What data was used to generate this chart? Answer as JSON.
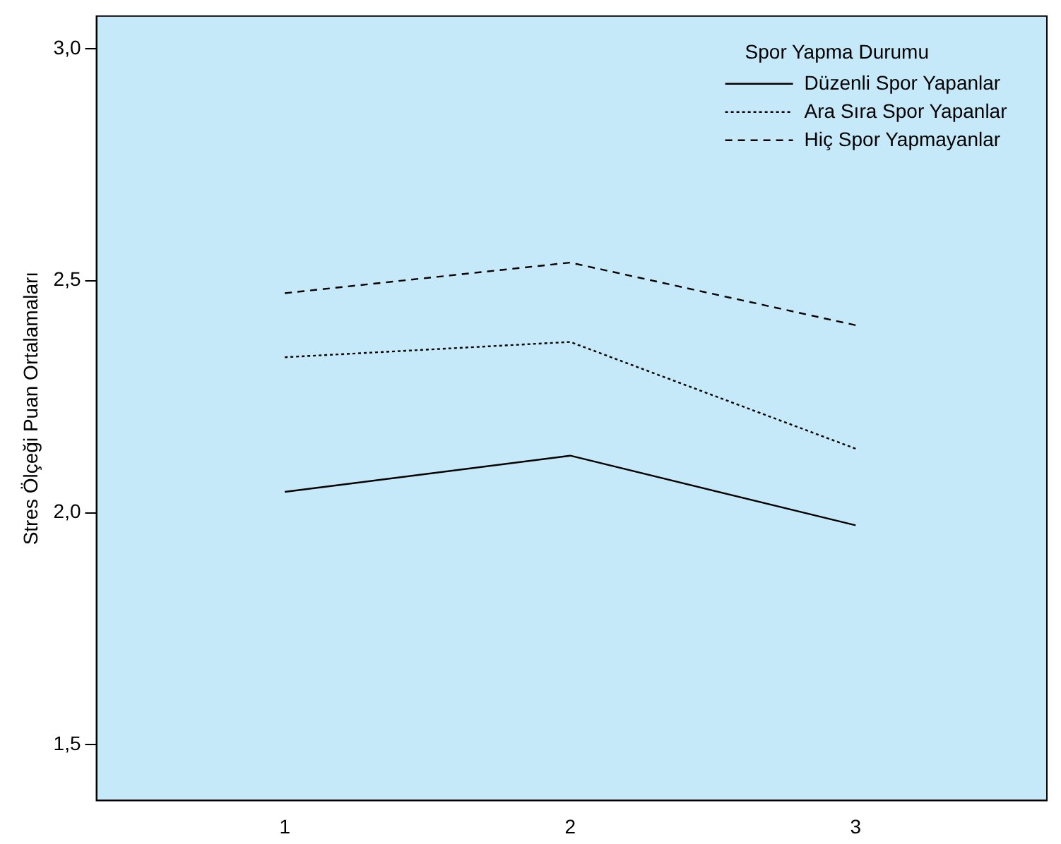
{
  "chart_data": {
    "type": "line",
    "ylabel": "Stres Ölçeği Puan Ortalamaları",
    "legend_title": "Spor Yapma Durumu",
    "legend": "top right",
    "marker": "none",
    "grid": false,
    "x": [
      1,
      2,
      3
    ],
    "xlim": [
      0.34,
      3.67
    ],
    "xticks": [
      1,
      2,
      3
    ],
    "ylim": [
      1.38,
      3.07
    ],
    "yticks": [
      {
        "value": 1.5,
        "label": "1,5"
      },
      {
        "value": 2,
        "label": "2,0"
      },
      {
        "value": 2.5,
        "label": "2,5"
      },
      {
        "value": 3,
        "label": "3,0"
      }
    ],
    "series": [
      {
        "name": "Düzenli Spor Yapanlar",
        "color": "#000000",
        "line_style": "solid",
        "values": [
          2.045,
          2.123,
          1.973
        ]
      },
      {
        "name": "Ara Sıra Spor Yapanlar",
        "color": "#000000",
        "line_style": "dotted",
        "values": [
          2.335,
          2.368,
          2.138
        ]
      },
      {
        "name": "Hiç Spor Yapmayanlar",
        "color": "#000000",
        "line_style": "dashed",
        "values": [
          2.473,
          2.539,
          2.404
        ]
      }
    ]
  }
}
